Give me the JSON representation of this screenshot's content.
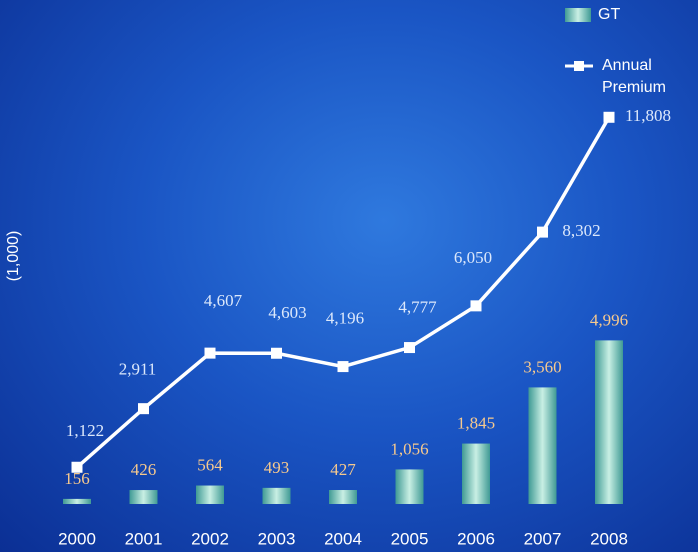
{
  "chart_data": {
    "type": "combo",
    "y_axis_label": "(1,000)",
    "categories": [
      "2000",
      "2001",
      "2002",
      "2003",
      "2004",
      "2005",
      "2006",
      "2007",
      "2008"
    ],
    "ylim": [
      0,
      12000
    ],
    "series": [
      {
        "name": "GT",
        "type": "bar",
        "color": "#3f9a94",
        "values": [
          156,
          426,
          564,
          493,
          427,
          1056,
          1845,
          3560,
          4996
        ],
        "value_labels": [
          "156",
          "426",
          "564",
          "493",
          "427",
          "1,056",
          "1,845",
          "3,560",
          "4,996"
        ]
      },
      {
        "name": "Annual Premium",
        "type": "line",
        "color": "#ffffff",
        "values": [
          1122,
          2911,
          4607,
          4603,
          4196,
          4777,
          6050,
          8302,
          11808
        ],
        "value_labels": [
          "1,122",
          "2,911",
          "4,607",
          "4,603",
          "4,196",
          "4,777",
          "6,050",
          "8,302",
          "11,808"
        ]
      }
    ]
  }
}
